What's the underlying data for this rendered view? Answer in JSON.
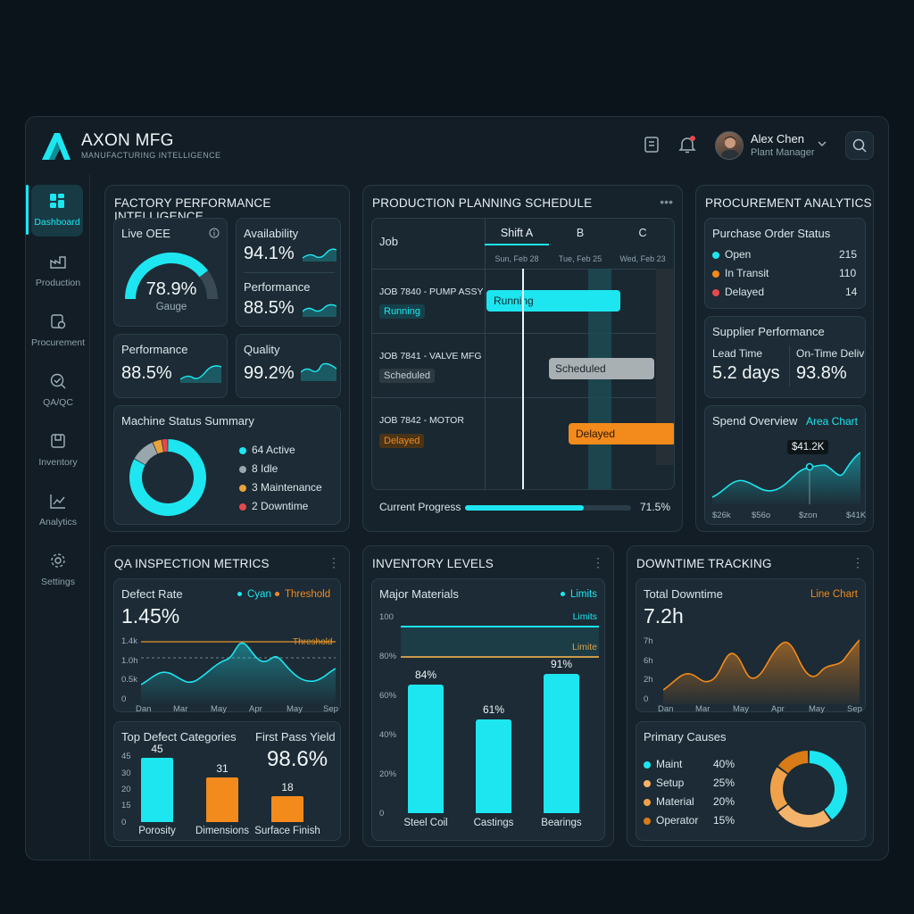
{
  "app": {
    "brand": "AXON MFG",
    "brand_sub": "MANUFACTURING INTELLIGENCE"
  },
  "user": {
    "name": "Alex Chen",
    "role": "Plant Manager"
  },
  "colors": {
    "accent": "#1de6f0",
    "orange": "#f28a1c",
    "red": "#e5484d",
    "green": "#7cc86a",
    "gold": "#e8b25a"
  },
  "sidebar": {
    "items": [
      {
        "label": "Dashboard",
        "icon": "dashboard-icon"
      },
      {
        "label": "Production",
        "icon": "production-icon"
      },
      {
        "label": "Procurement",
        "icon": "procurement-icon"
      },
      {
        "label": "QA/QC",
        "icon": "qa-icon"
      },
      {
        "label": "Inventory",
        "icon": "inventory-icon"
      },
      {
        "label": "Analytics",
        "icon": "analytics-icon"
      },
      {
        "label": "Settings",
        "icon": "gear-icon"
      }
    ]
  },
  "factory": {
    "title": "FACTORY PERFORMANCE INTELLIGENCE",
    "oee": {
      "label": "Live OEE",
      "value": "78.9%",
      "sub": "Gauge",
      "fraction": 0.789
    },
    "availability": {
      "label": "Availability",
      "value": "94.1%"
    },
    "performance_top": {
      "label": "Performance",
      "value": "88.5%"
    },
    "performance": {
      "label": "Performance",
      "value": "88.5%"
    },
    "quality": {
      "label": "Quality",
      "value": "99.2%"
    },
    "machine": {
      "label": "Machine Status Summary",
      "items": [
        {
          "text": "64 Active",
          "count": 64,
          "color": "#1de6f0"
        },
        {
          "text": "8 Idle",
          "count": 8,
          "color": "#9aa6ad"
        },
        {
          "text": "3 Maintenance",
          "count": 3,
          "color": "#e8a23a"
        },
        {
          "text": "2 Downtime",
          "count": 2,
          "color": "#e5484d"
        }
      ]
    }
  },
  "schedule": {
    "title": "PRODUCTION PLANNING SCHEDULE",
    "job_header": "Job",
    "shifts": [
      "Shift A",
      "B",
      "C"
    ],
    "dates": [
      "Sun, Feb 28",
      "Tue, Feb 25",
      "Wed, Feb 23"
    ],
    "jobs": [
      {
        "name": "JOB 7840 - PUMP ASSY",
        "status": "Running",
        "bar": "Running"
      },
      {
        "name": "JOB 7841 - VALVE MFG",
        "status": "Scheduled",
        "bar": "Scheduled"
      },
      {
        "name": "JOB 7842 - MOTOR",
        "status": "Delayed",
        "bar": "Delayed"
      }
    ],
    "progress": {
      "label": "Current Progress",
      "value": "71.5%",
      "fraction": 0.715
    }
  },
  "procurement": {
    "title": "PROCUREMENT ANALYTICS",
    "po": {
      "label": "Purchase Order Status",
      "items": [
        {
          "name": "Open",
          "value": "215",
          "color": "#1de6f0"
        },
        {
          "name": "In Transit",
          "value": "110",
          "color": "#f28a1c"
        },
        {
          "name": "Delayed",
          "value": "14",
          "color": "#e5484d"
        }
      ]
    },
    "supplier": {
      "label": "Supplier Performance",
      "lead_label": "Lead Time",
      "lead_value": "5.2 days",
      "ontime_label": "On-Time Deliv",
      "ontime_value": "93.8%"
    },
    "spend": {
      "label": "Spend Overview",
      "tag": "Area Chart",
      "callout": "$41.2K",
      "ticks": [
        "$26k",
        "$56o",
        "$zon",
        "$41K"
      ]
    }
  },
  "qa": {
    "title": "QA INSPECTION METRICS",
    "defect": {
      "label": "Defect Rate",
      "value": "1.45%",
      "legend_a": "Cyan",
      "legend_b": "Threshold",
      "threshold_label": "Threshold",
      "yticks": [
        "1.4k",
        "1.0h",
        "0.5k",
        "0"
      ],
      "xticks": [
        "Dan",
        "Mar",
        "May",
        "Apr",
        "May",
        "Sep"
      ]
    },
    "top_defects": {
      "label": "Top Defect Categories",
      "yticks": [
        "45",
        "30",
        "20",
        "15",
        "0"
      ],
      "bars": [
        {
          "name": "Porosity",
          "value": 45,
          "text": "45"
        },
        {
          "name": "Dimensions",
          "value": 31,
          "text": "31"
        },
        {
          "name": "Surface Finish",
          "value": 18,
          "text": "18"
        }
      ]
    },
    "fpy": {
      "label": "First Pass Yield",
      "value": "98.6%"
    }
  },
  "inventory": {
    "title": "INVENTORY LEVELS",
    "card_label": "Major Materials",
    "legend": "Limits",
    "limit_a": "Limits",
    "limit_b": "Limite",
    "yticks": [
      "100",
      "80%",
      "60%",
      "40%",
      "20%",
      "0"
    ],
    "bars": [
      {
        "name": "Steel Coil",
        "value": 84,
        "text": "84%"
      },
      {
        "name": "Castings",
        "value": 61,
        "text": "61%"
      },
      {
        "name": "Bearings",
        "value": 91,
        "text": "91%"
      }
    ]
  },
  "downtime": {
    "title": "DOWNTIME TRACKING",
    "total": {
      "label": "Total Downtime",
      "value": "7.2h",
      "tag": "Line Chart",
      "yticks": [
        "7h",
        "6h",
        "2h",
        "0"
      ],
      "xticks": [
        "Dan",
        "Mar",
        "May",
        "Apr",
        "May",
        "Sep"
      ]
    },
    "causes": {
      "label": "Primary Causes",
      "items": [
        {
          "name": "Maint",
          "value": "40%",
          "pct": 40,
          "color": "#1de6f0"
        },
        {
          "name": "Setup",
          "value": "25%",
          "pct": 25,
          "color": "#f4b36a"
        },
        {
          "name": "Material",
          "value": "20%",
          "pct": 20,
          "color": "#f0a24a"
        },
        {
          "name": "Operator",
          "value": "15%",
          "pct": 15,
          "color": "#d97b16"
        }
      ]
    }
  }
}
